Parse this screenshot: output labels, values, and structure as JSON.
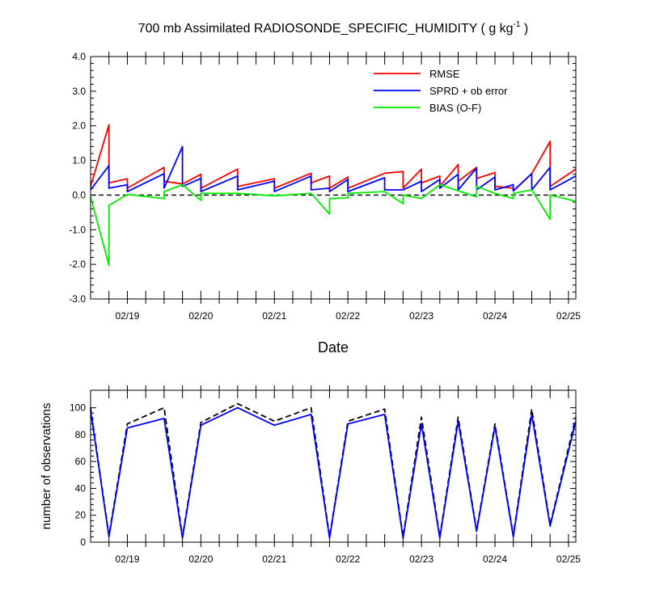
{
  "chart_data": [
    {
      "type": "line",
      "title_main": "700 mb Assimilated RADIOSONDE_SPECIFIC_HUMIDITY ( g kg",
      "title_sup": "-1",
      "title_end": " )",
      "xlabel": "Date",
      "ylabel": "",
      "xlim": [
        0,
        6.6
      ],
      "ylim": [
        -3.0,
        4.0
      ],
      "y_ticks": [
        -3.0,
        -2.0,
        -1.0,
        0.0,
        1.0,
        2.0,
        3.0,
        4.0
      ],
      "y_tick_labels": [
        "-3.0",
        "-2.0",
        "-1.0",
        "0.0",
        "1.0",
        "2.0",
        "3.0",
        "4.0"
      ],
      "x_tick_positions": [
        0.5,
        1.5,
        2.5,
        3.5,
        4.5,
        5.5,
        6.5
      ],
      "x_tick_labels": [
        "02/19",
        "02/20",
        "02/21",
        "02/22",
        "02/23",
        "02/24",
        "02/25"
      ],
      "zero_line": "dashed",
      "legend_position": "top-right",
      "series": [
        {
          "name": "RMSE",
          "color": "#ff0000",
          "points": [
            [
              0.0,
              0.25
            ],
            [
              0.25,
              2.03
            ],
            [
              0.25,
              0.35
            ],
            [
              0.5,
              0.47
            ],
            [
              0.5,
              0.2
            ],
            [
              1.0,
              0.8
            ],
            [
              1.0,
              0.4
            ],
            [
              1.25,
              0.32
            ],
            [
              1.5,
              0.6
            ],
            [
              1.5,
              0.2
            ],
            [
              2.0,
              0.75
            ],
            [
              2.0,
              0.25
            ],
            [
              2.5,
              0.47
            ],
            [
              2.5,
              0.2
            ],
            [
              3.0,
              0.63
            ],
            [
              3.0,
              0.35
            ],
            [
              3.25,
              0.55
            ],
            [
              3.25,
              0.2
            ],
            [
              3.5,
              0.52
            ],
            [
              3.5,
              0.2
            ],
            [
              4.0,
              0.63
            ],
            [
              4.25,
              0.68
            ],
            [
              4.25,
              0.2
            ],
            [
              4.5,
              0.75
            ],
            [
              4.5,
              0.35
            ],
            [
              4.75,
              0.55
            ],
            [
              4.75,
              0.25
            ],
            [
              5.0,
              0.88
            ],
            [
              5.0,
              0.4
            ],
            [
              5.25,
              0.8
            ],
            [
              5.25,
              0.48
            ],
            [
              5.5,
              0.65
            ],
            [
              5.5,
              0.25
            ],
            [
              5.75,
              0.2
            ],
            [
              5.75,
              0.12
            ],
            [
              6.0,
              0.62
            ],
            [
              6.25,
              1.55
            ],
            [
              6.25,
              0.25
            ],
            [
              6.6,
              0.75
            ]
          ]
        },
        {
          "name": "SPRD + ob error",
          "color": "#0000ff",
          "points": [
            [
              0.0,
              0.15
            ],
            [
              0.25,
              0.85
            ],
            [
              0.25,
              0.2
            ],
            [
              0.5,
              0.3
            ],
            [
              0.5,
              0.1
            ],
            [
              1.0,
              0.62
            ],
            [
              1.0,
              0.2
            ],
            [
              1.25,
              1.4
            ],
            [
              1.25,
              0.25
            ],
            [
              1.5,
              0.48
            ],
            [
              1.5,
              0.1
            ],
            [
              2.0,
              0.55
            ],
            [
              2.0,
              0.15
            ],
            [
              2.5,
              0.4
            ],
            [
              2.5,
              0.1
            ],
            [
              3.0,
              0.55
            ],
            [
              3.0,
              0.15
            ],
            [
              3.25,
              0.2
            ],
            [
              3.25,
              0.1
            ],
            [
              3.5,
              0.45
            ],
            [
              3.5,
              0.1
            ],
            [
              4.0,
              0.5
            ],
            [
              4.0,
              0.15
            ],
            [
              4.25,
              0.15
            ],
            [
              4.5,
              0.4
            ],
            [
              4.5,
              0.1
            ],
            [
              4.75,
              0.45
            ],
            [
              4.75,
              0.2
            ],
            [
              5.0,
              0.6
            ],
            [
              5.0,
              0.15
            ],
            [
              5.25,
              0.78
            ],
            [
              5.25,
              0.15
            ],
            [
              5.5,
              0.52
            ],
            [
              5.5,
              0.15
            ],
            [
              5.75,
              0.3
            ],
            [
              5.75,
              0.12
            ],
            [
              6.0,
              0.62
            ],
            [
              6.0,
              0.15
            ],
            [
              6.25,
              0.8
            ],
            [
              6.25,
              0.15
            ],
            [
              6.6,
              0.55
            ]
          ]
        },
        {
          "name": "BIAS (O-F)",
          "color": "#00ee00",
          "points": [
            [
              0.0,
              -0.05
            ],
            [
              0.25,
              -2.03
            ],
            [
              0.25,
              -0.3
            ],
            [
              0.5,
              0.02
            ],
            [
              1.0,
              -0.1
            ],
            [
              1.0,
              0.1
            ],
            [
              1.25,
              0.3
            ],
            [
              1.5,
              -0.15
            ],
            [
              1.5,
              0.05
            ],
            [
              2.0,
              0.05
            ],
            [
              2.5,
              -0.02
            ],
            [
              3.0,
              0.05
            ],
            [
              3.25,
              -0.55
            ],
            [
              3.25,
              -0.1
            ],
            [
              3.5,
              -0.08
            ],
            [
              3.5,
              0.05
            ],
            [
              4.0,
              0.1
            ],
            [
              4.25,
              -0.25
            ],
            [
              4.25,
              0.0
            ],
            [
              4.5,
              -0.1
            ],
            [
              4.75,
              0.3
            ],
            [
              5.25,
              -0.05
            ],
            [
              5.25,
              0.25
            ],
            [
              5.5,
              0.05
            ],
            [
              5.75,
              -0.1
            ],
            [
              5.75,
              0.05
            ],
            [
              6.0,
              0.15
            ],
            [
              6.25,
              -0.7
            ],
            [
              6.25,
              0.0
            ],
            [
              6.6,
              -0.18
            ]
          ]
        }
      ]
    },
    {
      "type": "line",
      "title": "",
      "xlabel": "",
      "ylabel": "number of observations",
      "xlim": [
        0,
        6.6
      ],
      "ylim": [
        0,
        113
      ],
      "y_ticks": [
        0,
        20,
        40,
        60,
        80,
        100
      ],
      "y_tick_labels": [
        "0",
        "20",
        "40",
        "60",
        "80",
        "100"
      ],
      "x_tick_positions": [
        0.5,
        1.5,
        2.5,
        3.5,
        4.5,
        5.5,
        6.5
      ],
      "x_tick_labels": [
        "02/19",
        "02/20",
        "02/21",
        "02/22",
        "02/23",
        "02/24",
        "02/25"
      ],
      "series": [
        {
          "name": "",
          "color": "#000000",
          "style": "dashed",
          "points": [
            [
              0.0,
              100
            ],
            [
              0.25,
              5
            ],
            [
              0.5,
              88
            ],
            [
              1.0,
              100
            ],
            [
              1.25,
              4
            ],
            [
              1.5,
              89
            ],
            [
              2.0,
              103
            ],
            [
              2.5,
              90
            ],
            [
              3.0,
              100
            ],
            [
              3.25,
              4
            ],
            [
              3.5,
              90
            ],
            [
              4.0,
              99
            ],
            [
              4.25,
              4
            ],
            [
              4.5,
              93
            ],
            [
              4.75,
              4
            ],
            [
              5.0,
              93
            ],
            [
              5.25,
              9
            ],
            [
              5.5,
              88
            ],
            [
              5.75,
              5
            ],
            [
              6.0,
              99
            ],
            [
              6.25,
              13
            ],
            [
              6.6,
              93
            ]
          ]
        },
        {
          "name": "",
          "color": "#0000ff",
          "style": "solid",
          "points": [
            [
              0.0,
              98
            ],
            [
              0.25,
              4
            ],
            [
              0.5,
              85
            ],
            [
              1.0,
              92
            ],
            [
              1.25,
              3
            ],
            [
              1.5,
              87
            ],
            [
              2.0,
              100
            ],
            [
              2.5,
              87
            ],
            [
              3.0,
              95
            ],
            [
              3.25,
              3
            ],
            [
              3.5,
              88
            ],
            [
              4.0,
              95
            ],
            [
              4.25,
              3
            ],
            [
              4.5,
              88
            ],
            [
              4.75,
              3
            ],
            [
              5.0,
              90
            ],
            [
              5.25,
              8
            ],
            [
              5.5,
              86
            ],
            [
              5.75,
              4
            ],
            [
              6.0,
              95
            ],
            [
              6.25,
              12
            ],
            [
              6.6,
              90
            ]
          ]
        }
      ]
    }
  ]
}
